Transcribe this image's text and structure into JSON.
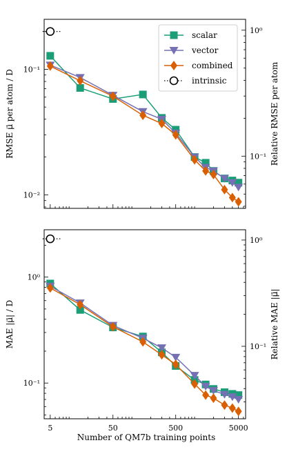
{
  "figure": {
    "xlabel": "Number of QM7b training points"
  },
  "colors": {
    "scalar": "#1b9e77",
    "vector": "#7570b3",
    "combined": "#d95f02",
    "intrinsic": "#000000"
  },
  "chart_data": [
    {
      "type": "line",
      "panel": "top",
      "ylabel": "RMSE μ⃗ per atom / D",
      "ylabel_right": "Relative RMSE per atom",
      "xscale": "log",
      "yscale": "log",
      "xlim": [
        4,
        6500
      ],
      "ylim": [
        0.0078,
        0.25
      ],
      "ylim_right": [
        0.0385,
        1.22
      ],
      "xticks": [
        "5",
        "50",
        "500",
        "5000"
      ],
      "yticks": [
        "10⁻²",
        "10⁻¹"
      ],
      "yticks_right": [
        "10⁻¹",
        "10⁰"
      ],
      "legend": {
        "position": "top-right",
        "entries": [
          "scalar",
          "vector",
          "combined",
          "intrinsic"
        ]
      },
      "series": [
        {
          "name": "scalar",
          "marker": "square",
          "x": [
            5,
            15,
            50,
            150,
            300,
            500,
            1000,
            1500,
            2000,
            3000,
            4000,
            5000
          ],
          "y": [
            0.128,
            0.071,
            0.058,
            0.063,
            0.041,
            0.033,
            0.02,
            0.018,
            0.0155,
            0.0135,
            0.013,
            0.0125
          ]
        },
        {
          "name": "vector",
          "marker": "triangle-down",
          "x": [
            5,
            15,
            50,
            150,
            300,
            500,
            1000,
            1500,
            2000,
            3000,
            4000,
            5000
          ],
          "y": [
            0.108,
            0.086,
            0.062,
            0.046,
            0.04,
            0.031,
            0.02,
            0.0165,
            0.0155,
            0.0135,
            0.0125,
            0.0115
          ]
        },
        {
          "name": "combined",
          "marker": "diamond",
          "x": [
            5,
            15,
            50,
            150,
            300,
            500,
            1000,
            1500,
            2000,
            3000,
            4000,
            5000
          ],
          "y": [
            0.106,
            0.081,
            0.061,
            0.043,
            0.037,
            0.03,
            0.019,
            0.0155,
            0.0145,
            0.011,
            0.0095,
            0.0088
          ]
        },
        {
          "name": "intrinsic",
          "marker": "open-circle",
          "style": "dotted",
          "x": [
            5
          ],
          "y": [
            0.2
          ]
        }
      ]
    },
    {
      "type": "line",
      "panel": "bottom",
      "ylabel": "MAE |μ⃗| / D",
      "ylabel_right": "Relative MAE |μ⃗|",
      "xscale": "log",
      "yscale": "log",
      "xlim": [
        4,
        6500
      ],
      "ylim": [
        0.046,
        2.8
      ],
      "ylim_right": [
        0.0208,
        1.25
      ],
      "xticks": [
        "5",
        "50",
        "500",
        "5000"
      ],
      "yticks": [
        "10⁻¹",
        "10⁰"
      ],
      "yticks_right": [
        "10⁻¹",
        "10⁰"
      ],
      "series": [
        {
          "name": "scalar",
          "marker": "square",
          "x": [
            5,
            15,
            50,
            150,
            300,
            500,
            1000,
            1500,
            2000,
            3000,
            4000,
            5000
          ],
          "y": [
            0.87,
            0.49,
            0.335,
            0.275,
            0.195,
            0.145,
            0.107,
            0.097,
            0.088,
            0.082,
            0.079,
            0.077
          ]
        },
        {
          "name": "vector",
          "marker": "triangle-down",
          "x": [
            5,
            15,
            50,
            150,
            300,
            500,
            1000,
            1500,
            2000,
            3000,
            4000,
            5000
          ],
          "y": [
            0.82,
            0.57,
            0.35,
            0.265,
            0.215,
            0.175,
            0.118,
            0.093,
            0.085,
            0.078,
            0.074,
            0.07
          ]
        },
        {
          "name": "combined",
          "marker": "diamond",
          "x": [
            5,
            15,
            50,
            150,
            300,
            500,
            1000,
            1500,
            2000,
            3000,
            4000,
            5000
          ],
          "y": [
            0.79,
            0.55,
            0.34,
            0.245,
            0.185,
            0.15,
            0.098,
            0.077,
            0.072,
            0.062,
            0.058,
            0.054
          ]
        },
        {
          "name": "intrinsic",
          "marker": "open-circle",
          "style": "dotted",
          "x": [
            5
          ],
          "y": [
            2.3
          ]
        }
      ]
    }
  ]
}
